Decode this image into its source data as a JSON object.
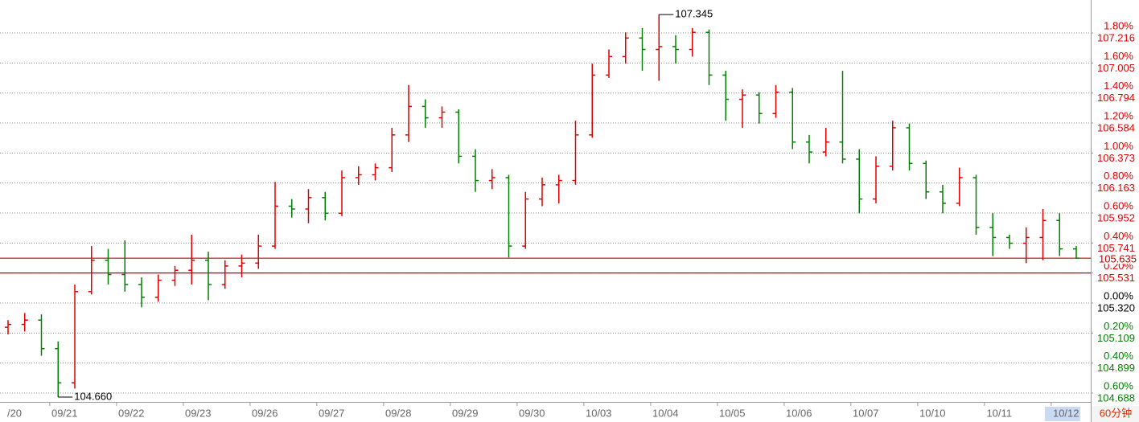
{
  "chart_data": {
    "type": "ohlc",
    "categories": [
      "/20",
      null,
      null,
      "09/21",
      null,
      null,
      null,
      "09/22",
      null,
      null,
      null,
      "09/23",
      null,
      null,
      null,
      "09/26",
      null,
      null,
      null,
      "09/27",
      null,
      null,
      null,
      "09/28",
      null,
      null,
      null,
      "09/29",
      null,
      null,
      null,
      "09/30",
      null,
      null,
      null,
      "10/03",
      null,
      null,
      null,
      "10/04",
      null,
      null,
      null,
      "10/05",
      null,
      null,
      null,
      "10/06",
      null,
      null,
      null,
      "10/07",
      null,
      null,
      null,
      "10/10",
      null,
      null,
      null,
      "10/11",
      null,
      null,
      null,
      "10/12",
      null
    ],
    "open": [
      105.15,
      105.17,
      105.2,
      105.0,
      104.76,
      105.4,
      105.62,
      105.52,
      105.45,
      105.36,
      105.48,
      105.55,
      105.62,
      105.45,
      105.58,
      105.6,
      105.72,
      106.0,
      105.98,
      106.06,
      105.95,
      106.2,
      106.22,
      106.27,
      106.5,
      106.7,
      106.62,
      106.66,
      106.35,
      106.18,
      106.2,
      105.72,
      106.05,
      106.15,
      106.18,
      106.5,
      106.92,
      107.05,
      107.18,
      107.1,
      107.12,
      107.1,
      107.22,
      106.92,
      106.75,
      106.78,
      106.65,
      106.8,
      106.45,
      106.38,
      106.45,
      106.33,
      106.05,
      106.28,
      106.55,
      106.3,
      106.1,
      106.02,
      106.2,
      105.85,
      105.78,
      105.74,
      105.78,
      105.9,
      105.7
    ],
    "high": [
      105.2,
      105.25,
      105.24,
      105.05,
      105.45,
      105.72,
      105.7,
      105.76,
      105.5,
      105.52,
      105.58,
      105.8,
      105.68,
      105.62,
      105.66,
      105.8,
      106.17,
      106.05,
      106.12,
      106.1,
      106.25,
      106.28,
      106.3,
      106.55,
      106.85,
      106.75,
      106.7,
      106.68,
      106.4,
      106.26,
      106.22,
      106.1,
      106.2,
      106.22,
      106.6,
      107.0,
      107.1,
      107.22,
      107.25,
      107.345,
      107.2,
      107.25,
      107.24,
      106.95,
      106.82,
      106.8,
      106.85,
      106.83,
      106.5,
      106.55,
      106.95,
      106.4,
      106.35,
      106.6,
      106.58,
      106.32,
      106.15,
      106.27,
      106.22,
      105.95,
      105.8,
      105.85,
      105.98,
      105.95,
      105.72
    ],
    "low": [
      105.1,
      105.12,
      104.95,
      104.66,
      104.72,
      105.38,
      105.45,
      105.4,
      105.29,
      105.33,
      105.44,
      105.45,
      105.34,
      105.42,
      105.5,
      105.56,
      105.7,
      105.92,
      105.88,
      105.9,
      105.93,
      106.15,
      106.18,
      106.24,
      106.45,
      106.55,
      106.55,
      106.3,
      106.1,
      106.12,
      105.64,
      105.7,
      106.0,
      106.02,
      106.15,
      106.48,
      106.9,
      107.0,
      106.95,
      106.88,
      107.0,
      107.05,
      106.85,
      106.6,
      106.55,
      106.58,
      106.62,
      106.4,
      106.3,
      106.35,
      106.3,
      105.95,
      106.02,
      106.25,
      106.25,
      106.05,
      105.95,
      106.0,
      105.8,
      105.65,
      105.7,
      105.6,
      105.62,
      105.65,
      105.63
    ],
    "close": [
      105.17,
      105.2,
      105.0,
      104.76,
      105.4,
      105.62,
      105.52,
      105.45,
      105.36,
      105.48,
      105.55,
      105.62,
      105.45,
      105.58,
      105.6,
      105.72,
      106.0,
      105.98,
      106.06,
      105.95,
      106.2,
      106.22,
      106.27,
      106.5,
      106.7,
      106.62,
      106.66,
      106.35,
      106.18,
      106.2,
      105.72,
      106.05,
      106.15,
      106.18,
      106.5,
      106.92,
      107.05,
      107.18,
      107.1,
      107.12,
      107.1,
      107.22,
      106.92,
      106.75,
      106.78,
      106.65,
      106.8,
      106.45,
      106.38,
      106.45,
      106.33,
      106.05,
      106.28,
      106.55,
      106.3,
      106.1,
      106.02,
      106.2,
      105.85,
      105.78,
      105.74,
      105.78,
      105.9,
      105.7,
      105.635
    ],
    "up_color": "#e00000",
    "down_color": "#008000",
    "flat_color": "#000000",
    "ylim": [
      104.626,
      107.447
    ],
    "yticks": [
      107.216,
      107.005,
      106.794,
      106.584,
      106.373,
      106.163,
      105.952,
      105.741,
      105.531,
      {
        "value": 105.32,
        "label": "105.320"
      },
      105.109,
      104.899,
      104.688
    ],
    "y2lim": [
      -0.659,
      2.02
    ],
    "y2ticks": [
      {
        "value": 1.8,
        "label": "1.80%"
      },
      {
        "value": 1.6,
        "label": "1.60%"
      },
      {
        "value": 1.4,
        "label": "1.40%"
      },
      {
        "value": 1.2,
        "label": "1.20%"
      },
      {
        "value": 1,
        "label": "1.00%"
      },
      {
        "value": 0.8,
        "label": "0.80%"
      },
      {
        "value": 0.6,
        "label": "0.60%"
      },
      {
        "value": 0.4,
        "label": "0.40%"
      },
      {
        "value": 0.2,
        "label": "0.20%"
      },
      {
        "value": 0,
        "label": "0.00%"
      },
      {
        "value": -0.2,
        "label": "0.20%"
      },
      {
        "value": -0.4,
        "label": "0.40%"
      },
      {
        "value": -0.6,
        "label": "0.60%"
      }
    ],
    "grid": true,
    "annotations": [
      {
        "value": 107.345,
        "label": "107.345",
        "at": "high"
      },
      {
        "value": 104.66,
        "label": "104.660",
        "at": "low"
      }
    ],
    "reference_lines": [
      {
        "value": 105.635,
        "color": "#c00000",
        "labeled": true
      },
      {
        "value": 105.531,
        "color": "#c00000",
        "labeled": false
      }
    ],
    "period_label": "60分钟"
  }
}
